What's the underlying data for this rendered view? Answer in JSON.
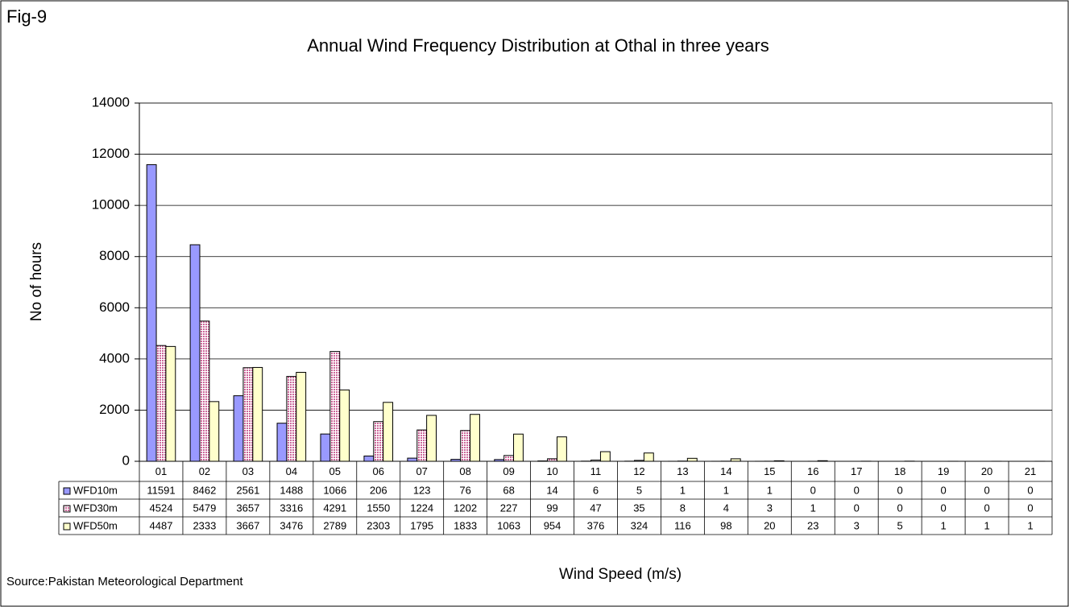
{
  "chart_data": {
    "type": "bar",
    "figure_label": "Fig-9",
    "title": "Annual Wind Frequency Distribution at Othal in three years",
    "y_label": "No of hours",
    "x_label": "Wind Speed (m/s)",
    "source": "Source:Pakistan Meteorological Department",
    "categories": [
      "01",
      "02",
      "03",
      "04",
      "05",
      "06",
      "07",
      "08",
      "09",
      "10",
      "11",
      "12",
      "13",
      "14",
      "15",
      "16",
      "17",
      "18",
      "19",
      "20",
      "21"
    ],
    "series": [
      {
        "name": "WFD10m",
        "color": "#9999ff",
        "values": [
          11591,
          8462,
          2561,
          1488,
          1066,
          206,
          123,
          76,
          68,
          14,
          6,
          5,
          1,
          1,
          1,
          0,
          0,
          0,
          0,
          0,
          0
        ]
      },
      {
        "name": "WFD30m",
        "color": "#cc6699",
        "pattern": true,
        "values": [
          4524,
          5479,
          3657,
          3316,
          4291,
          1550,
          1224,
          1202,
          227,
          99,
          47,
          35,
          8,
          4,
          3,
          1,
          0,
          0,
          0,
          0,
          0
        ]
      },
      {
        "name": "WFD50m",
        "color": "#ffffcc",
        "values": [
          4487,
          2333,
          3667,
          3476,
          2789,
          2303,
          1795,
          1833,
          1063,
          954,
          376,
          324,
          116,
          98,
          20,
          23,
          3,
          5,
          1,
          1,
          1
        ]
      }
    ],
    "ylim": [
      0,
      14000
    ],
    "yticks": [
      0,
      2000,
      4000,
      6000,
      8000,
      10000,
      12000,
      14000
    ],
    "grid": true,
    "data_table": true
  }
}
